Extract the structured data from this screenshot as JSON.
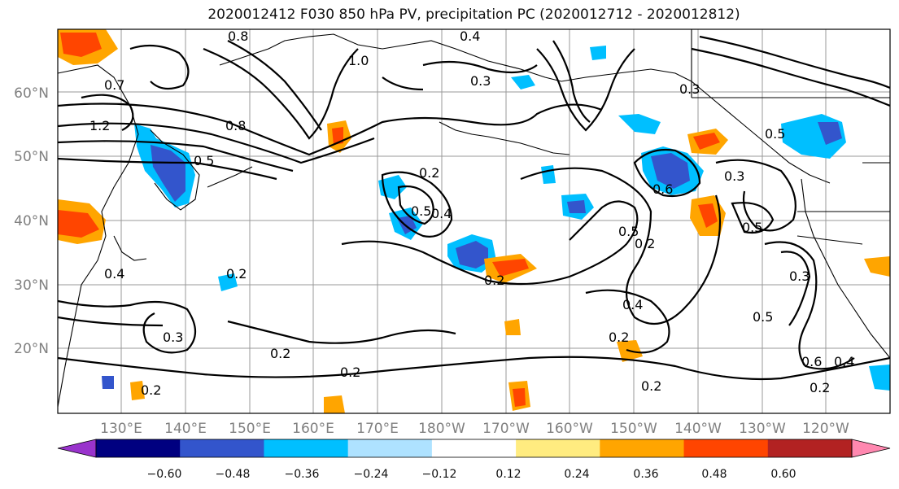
{
  "title": "2020012412 F030 850 hPa PV, precipitation PC (2020012712 - 2020012812)",
  "map": {
    "lat_labels": [
      "60°N",
      "50°N",
      "40°N",
      "30°N",
      "20°N"
    ],
    "lon_labels": [
      "130°E",
      "140°E",
      "150°E",
      "160°E",
      "170°E",
      "180°W",
      "170°W",
      "160°W",
      "150°W",
      "140°W",
      "130°W",
      "120°W"
    ]
  },
  "colorbar": {
    "colors": [
      "#9933cc",
      "#000080",
      "#3355cc",
      "#00bfff",
      "#aee2ff",
      "#ffffff",
      "#ffec80",
      "#ffa500",
      "#ff4500",
      "#b22222",
      "#ff88b0"
    ],
    "tick_labels": [
      "−0.60",
      "−0.48",
      "−0.36",
      "−0.24",
      "−0.12",
      "0.12",
      "0.24",
      "0.36",
      "0.48",
      "0.60"
    ]
  },
  "contour_labels": [
    "0.8",
    "0.4",
    "1.0",
    "0.3",
    "0.7",
    "1.2",
    "0.8",
    "0.5",
    "0.2",
    "0.5",
    "0.4",
    "0.2",
    "0.2",
    "0.3",
    "0.2",
    "0.2",
    "0.4",
    "0.3",
    "0.5",
    "0.2",
    "0.6",
    "0.3",
    "0.5",
    "0.5",
    "0.3",
    "0.4",
    "0.2",
    "0.2",
    "0.6",
    "0.4",
    "0.2",
    "0.5",
    "0.2"
  ],
  "precip_colors": {
    "dark_blue": "#3355cc",
    "light_blue": "#00bfff",
    "pale_blue": "#aee2ff",
    "orange": "#ffa500",
    "red_orange": "#ff4500",
    "yellow": "#ffec80"
  }
}
